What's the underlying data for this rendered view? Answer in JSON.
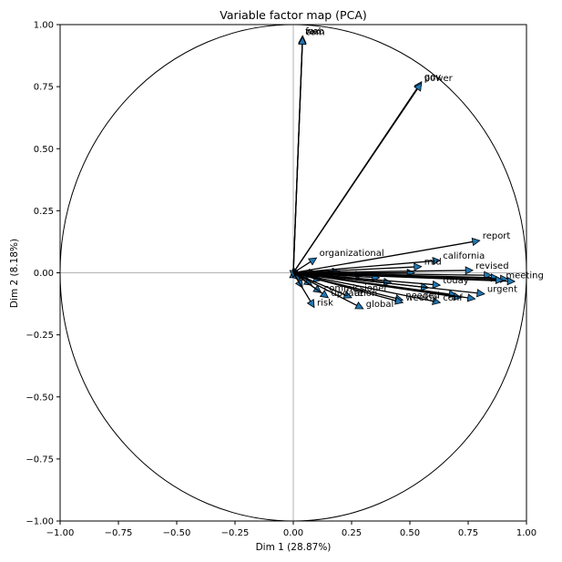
{
  "chart_data": {
    "type": "scatter",
    "title": "Variable factor map (PCA)",
    "xlabel": "Dim 1 (28.87%)",
    "ylabel": "Dim 2 (8.18%)",
    "xlim": [
      -1.0,
      1.0
    ],
    "ylim": [
      -1.0,
      1.0
    ],
    "xticks": [
      "−1.00",
      "−0.75",
      "−0.50",
      "−0.25",
      "0.00",
      "0.25",
      "0.50",
      "0.75",
      "1.00"
    ],
    "yticks": [
      "−1.00",
      "−0.75",
      "−0.50",
      "−0.25",
      "0.00",
      "0.25",
      "0.50",
      "0.75",
      "1.00"
    ],
    "tick_values": [
      -1.0,
      -0.75,
      -0.5,
      -0.25,
      0.0,
      0.25,
      0.5,
      0.75,
      1.0
    ],
    "unit_circle": true,
    "reference_lines": [
      0,
      0
    ],
    "grid": false,
    "arrow_color": "#1f77b4",
    "variables": [
      {
        "label": "web",
        "x": 0.04,
        "y": 0.955
      },
      {
        "label": "fax",
        "x": 0.04,
        "y": 0.955
      },
      {
        "label": "com",
        "x": 0.04,
        "y": 0.95
      },
      {
        "label": "gov",
        "x": 0.55,
        "y": 0.77
      },
      {
        "label": "power",
        "x": 0.55,
        "y": 0.765
      },
      {
        "label": "report",
        "x": 0.8,
        "y": 0.13
      },
      {
        "label": "california",
        "x": 0.63,
        "y": 0.05
      },
      {
        "label": "organizational",
        "x": 0.1,
        "y": 0.06
      },
      {
        "label": "mid",
        "x": 0.55,
        "y": 0.025
      },
      {
        "label": "revised",
        "x": 0.77,
        "y": 0.01
      },
      {
        "label": "today",
        "x": 0.63,
        "y": -0.05
      },
      {
        "label": "meeting",
        "x": 0.9,
        "y": -0.03
      },
      {
        "label": "urgent",
        "x": 0.82,
        "y": -0.085
      },
      {
        "label": "needed",
        "x": 0.47,
        "y": -0.11
      },
      {
        "label": "weekly",
        "x": 0.47,
        "y": -0.12
      },
      {
        "label": "conf",
        "x": 0.63,
        "y": -0.12
      },
      {
        "label": "global",
        "x": 0.3,
        "y": -0.145
      },
      {
        "label": "risk",
        "x": 0.09,
        "y": -0.14
      },
      {
        "label": "commissioner",
        "x": 0.12,
        "y": -0.08
      },
      {
        "label": "ation",
        "x": 0.25,
        "y": -0.1
      },
      {
        "label": "update",
        "x": 0.15,
        "y": -0.1
      }
    ],
    "unlabeled_vectors": [
      {
        "x": 0.0,
        "y": 0.01
      },
      {
        "x": -0.01,
        "y": -0.01
      },
      {
        "x": 0.02,
        "y": 0.01
      },
      {
        "x": 0.03,
        "y": -0.03
      },
      {
        "x": 0.04,
        "y": -0.06
      },
      {
        "x": 0.06,
        "y": -0.02
      },
      {
        "x": 0.08,
        "y": -0.05
      },
      {
        "x": 0.1,
        "y": 0.0
      },
      {
        "x": 0.12,
        "y": -0.03
      },
      {
        "x": 0.2,
        "y": 0.005
      },
      {
        "x": 0.3,
        "y": -0.01
      },
      {
        "x": 0.37,
        "y": -0.02
      },
      {
        "x": 0.42,
        "y": -0.04
      },
      {
        "x": 0.52,
        "y": 0.0
      },
      {
        "x": 0.58,
        "y": -0.06
      },
      {
        "x": 0.7,
        "y": -0.09
      },
      {
        "x": 0.72,
        "y": -0.1
      },
      {
        "x": 0.78,
        "y": -0.105
      },
      {
        "x": 0.85,
        "y": -0.01
      },
      {
        "x": 0.88,
        "y": -0.02
      },
      {
        "x": 0.92,
        "y": -0.025
      },
      {
        "x": 0.95,
        "y": -0.035
      }
    ]
  }
}
